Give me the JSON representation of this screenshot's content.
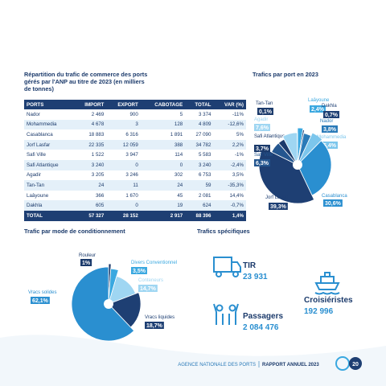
{
  "table": {
    "title": "Répartition du trafic de commerce des ports gérés par l'ANP au titre de 2023 (en milliers de tonnes)",
    "columns": [
      "PORTS",
      "IMPORT",
      "EXPORT",
      "CABOTAGE",
      "TOTAL",
      "VAR (%)"
    ],
    "rows": [
      [
        "Nador",
        "2 469",
        "900",
        "5",
        "3 374",
        "-11%"
      ],
      [
        "Mohammedia",
        "4 678",
        "3",
        "128",
        "4 809",
        "-12,6%"
      ],
      [
        "Casablanca",
        "18 883",
        "6 316",
        "1 891",
        "27 090",
        "5%"
      ],
      [
        "Jorf Lasfar",
        "22 335",
        "12 059",
        "388",
        "34 782",
        "2,2%"
      ],
      [
        "Safi Ville",
        "1 522",
        "3 947",
        "114",
        "5 583",
        "-1%"
      ],
      [
        "Safi Atlantique",
        "3 240",
        "0",
        "0",
        "3 240",
        "-2,4%"
      ],
      [
        "Agadir",
        "3 205",
        "3 246",
        "302",
        "6 753",
        "3,5%"
      ],
      [
        "Tan-Tan",
        "24",
        "11",
        "24",
        "59",
        "-35,3%"
      ],
      [
        "Laâyoune",
        "366",
        "1 670",
        "45",
        "2 081",
        "14,4%"
      ],
      [
        "Dakhla",
        "605",
        "0",
        "19",
        "624",
        "-0,7%"
      ],
      [
        "TOTAL",
        "57 327",
        "28 152",
        "2 917",
        "88 396",
        "1,4%"
      ]
    ]
  },
  "chart_data": [
    {
      "type": "pie",
      "title": "Trafics par port en 2023",
      "categories": [
        "Laâyoune",
        "Dakhla",
        "Nador",
        "Mohammedia",
        "Casablanca",
        "Jorf Lasfar",
        "Safi Ville",
        "Safi Atlantique",
        "Agadir",
        "Tan-Tan"
      ],
      "values": [
        2.4,
        0.7,
        3.8,
        5.4,
        30.6,
        39.3,
        6.3,
        3.7,
        7.6,
        0.1
      ],
      "value_labels": [
        "2,4%",
        "0,7%",
        "3,8%",
        "5,4%",
        "30,6%",
        "39,3%",
        "6,3%",
        "3,7%",
        "7,6%",
        "0,1%"
      ],
      "colors": [
        "#3aa8e0",
        "#1e3f73",
        "#2a7ab8",
        "#7cc6ec",
        "#2a8fd0",
        "#1e3f73",
        "#24568f",
        "#1b3a6b",
        "#9fd6f2",
        "#1b3a6b"
      ]
    },
    {
      "type": "pie",
      "title": "Trafic par mode de conditionnement",
      "categories": [
        "Rouleur",
        "Divers Conventionnel",
        "Conteneurs",
        "Vracs liquides",
        "Vracs solides"
      ],
      "values": [
        1,
        3.5,
        14.7,
        18.7,
        62.1
      ],
      "value_labels": [
        "1%",
        "3,5%",
        "14,7%",
        "18,7%",
        "62,1%"
      ],
      "colors": [
        "#1b3a6b",
        "#3aa8e0",
        "#9fd6f2",
        "#1e3f73",
        "#2a8fd0"
      ]
    }
  ],
  "specific": {
    "title": "Trafics spécifiques",
    "items": [
      {
        "label": "TIR",
        "value": "23 931"
      },
      {
        "label": "Croisiéristes",
        "value": "192 996"
      },
      {
        "label": "Passagers",
        "value": "2 084 476"
      }
    ]
  },
  "footer": {
    "organization": "AGENCE NATIONALE DES PORTS",
    "report": "RAPPORT ANNUEL 2023",
    "page": "20"
  }
}
